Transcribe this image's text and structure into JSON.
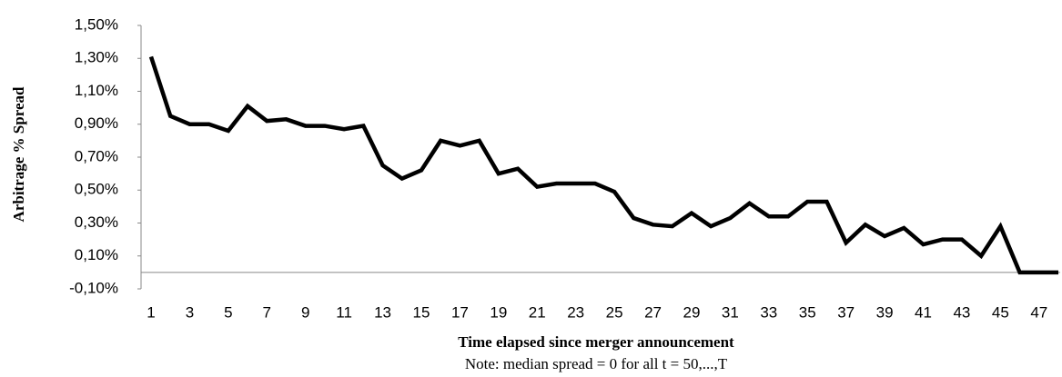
{
  "chart_data": {
    "type": "line",
    "y_label": "Arbitrage % Spread",
    "x_label": "Time elapsed since merger announcement",
    "note": "Note: median spread = 0 for all t = 50,...,T",
    "categories": [
      1,
      null,
      3,
      null,
      5,
      null,
      7,
      null,
      9,
      null,
      11,
      null,
      13,
      null,
      15,
      null,
      17,
      null,
      19,
      null,
      21,
      null,
      23,
      null,
      25,
      null,
      27,
      null,
      29,
      null,
      31,
      null,
      33,
      null,
      35,
      null,
      37,
      null,
      39,
      null,
      41,
      null,
      43,
      null,
      45,
      null,
      47,
      null
    ],
    "series": [
      {
        "color": "#000000",
        "values": [
          1.31,
          0.95,
          0.9,
          0.9,
          0.86,
          1.01,
          0.92,
          0.93,
          0.89,
          0.89,
          0.87,
          0.89,
          0.65,
          0.57,
          0.62,
          0.8,
          0.77,
          0.8,
          0.6,
          0.63,
          0.52,
          0.54,
          0.54,
          0.54,
          0.49,
          0.33,
          0.29,
          0.28,
          0.36,
          0.28,
          0.33,
          0.42,
          0.34,
          0.34,
          0.43,
          0.43,
          0.18,
          0.29,
          0.22,
          0.27,
          0.17,
          0.2,
          0.2,
          0.1,
          0.28,
          0,
          0,
          0
        ]
      }
    ],
    "ylim": [
      -0.1,
      1.5
    ],
    "yticks": [
      {
        "value": -0.1,
        "label": "-0,10%"
      },
      {
        "value": 0.1,
        "label": "0,10%"
      },
      {
        "value": 0.3,
        "label": "0,30%"
      },
      {
        "value": 0.5,
        "label": "0,50%"
      },
      {
        "value": 0.7,
        "label": "0,70%"
      },
      {
        "value": 0.9,
        "label": "0,90%"
      },
      {
        "value": 1.1,
        "label": "1,10%"
      },
      {
        "value": 1.3,
        "label": "1,30%"
      },
      {
        "value": 1.5,
        "label": "1,50%"
      }
    ],
    "grid": false
  }
}
